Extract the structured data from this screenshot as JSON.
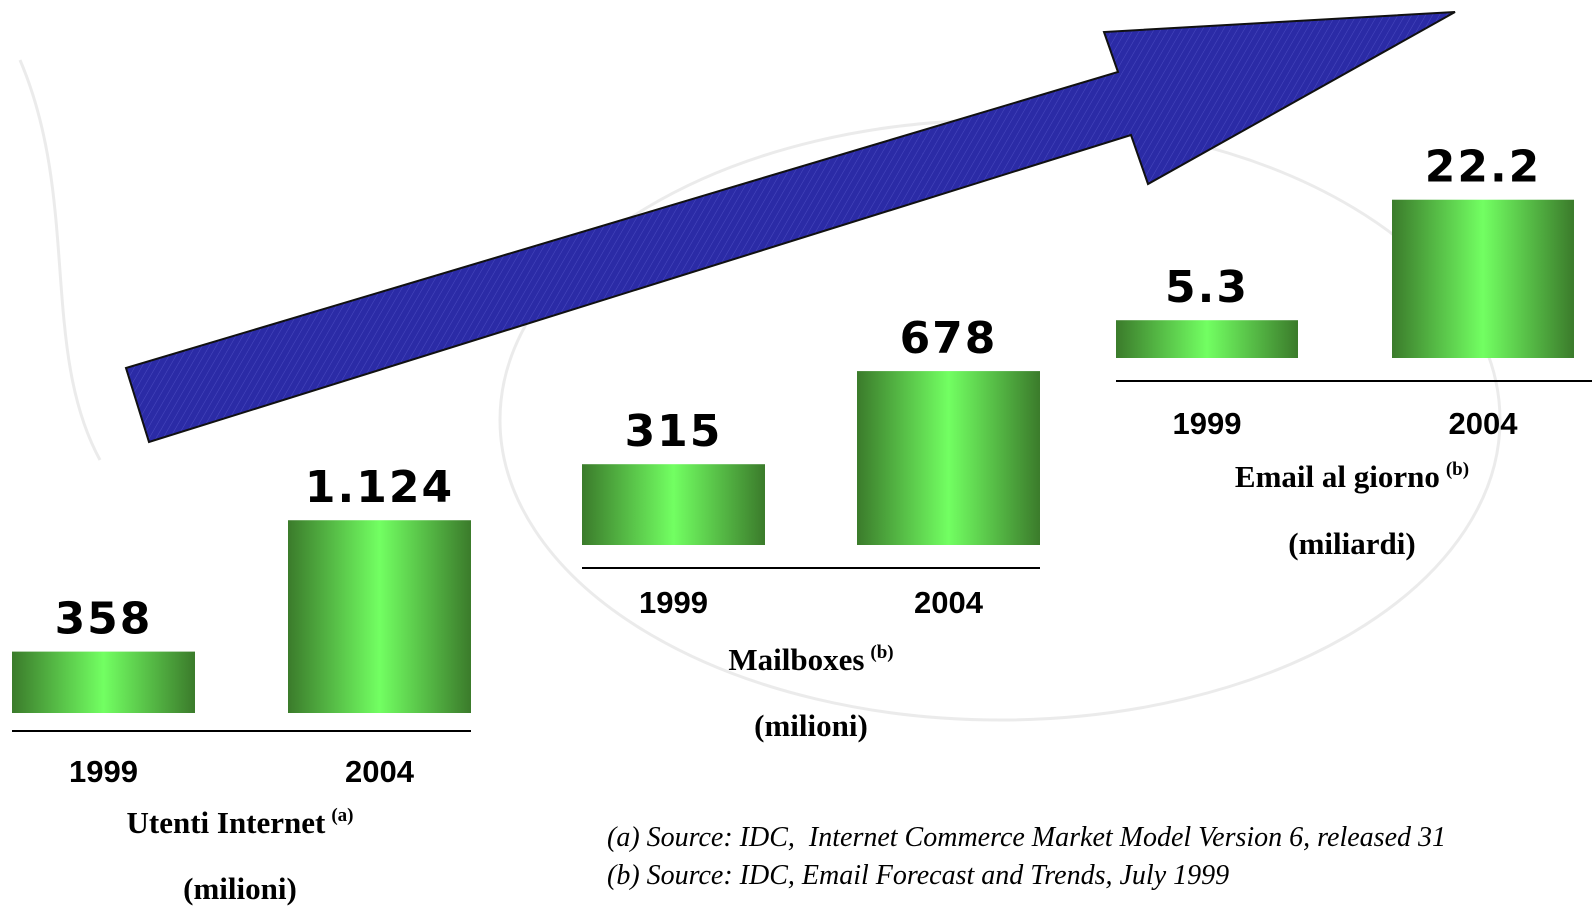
{
  "chart_data": [
    {
      "type": "bar",
      "title": "Utenti Internet",
      "title_note": "(a)",
      "subtitle": "(milioni)",
      "categories": [
        "1999",
        "2004"
      ],
      "values": [
        358,
        1124
      ],
      "value_labels": [
        "358",
        "1.124"
      ]
    },
    {
      "type": "bar",
      "title": "Mailboxes",
      "title_note": "(b)",
      "subtitle": "(milioni)",
      "categories": [
        "1999",
        "2004"
      ],
      "values": [
        315,
        678
      ]
    },
    {
      "type": "bar",
      "title": "Email al giorno",
      "title_note": "(b)",
      "subtitle": "(miliardi)",
      "categories": [
        "1999",
        "2004"
      ],
      "values": [
        5.3,
        22.2
      ]
    }
  ],
  "footnotes": [
    "(a) Source: IDC,  Internet Commerce Market Model Version 6, released 31",
    "(b) Source: IDC, Email Forecast and Trends, July 1999"
  ]
}
